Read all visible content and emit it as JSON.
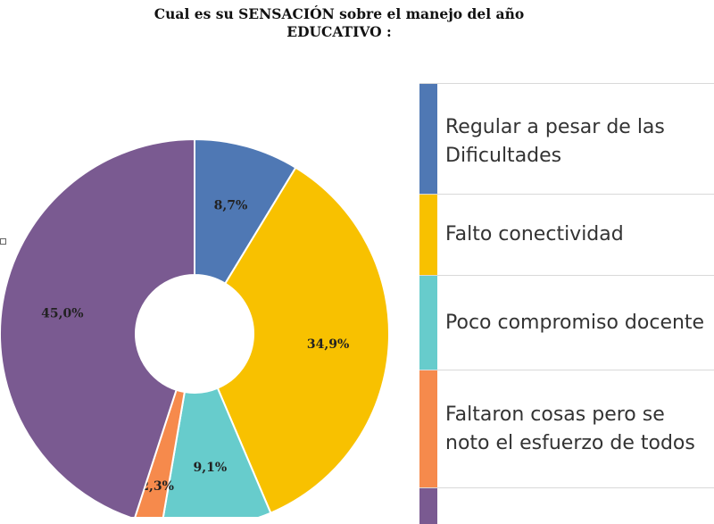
{
  "title": {
    "line1": "Cual es su SENSACIÓN sobre el manejo del año",
    "line2": "EDUCATIVO  :"
  },
  "chart_data": {
    "type": "pie",
    "donut": true,
    "slices": [
      {
        "label": "Regular a pesar de las Dificultades",
        "value": 8.7,
        "display": "8,7%",
        "color": "#4f78b4"
      },
      {
        "label": "Falto conectividad",
        "value": 34.9,
        "display": "34,9%",
        "color": "#f8c100"
      },
      {
        "label": "Poco compromiso docente",
        "value": 9.1,
        "display": "9,1%",
        "color": "#67cccc"
      },
      {
        "label": "Faltaron cosas pero se noto el esfuerzo de todos",
        "value": 2.3,
        "display": "2,3%",
        "color": "#f68a4c"
      },
      {
        "label": "",
        "value": 45.0,
        "display": "45,0%",
        "color": "#7a5a91"
      }
    ]
  },
  "legend": {
    "items": [
      {
        "text": "Regular a pesar de las Dificultades",
        "color": "#4f78b4"
      },
      {
        "text": "Falto conectividad",
        "color": "#f8c100"
      },
      {
        "text": "Poco compromiso docente",
        "color": "#67cccc"
      },
      {
        "text": "Faltaron cosas pero se noto el esfuerzo de todos",
        "color": "#f68a4c"
      },
      {
        "text": "",
        "color": "#7a5a91"
      }
    ]
  }
}
